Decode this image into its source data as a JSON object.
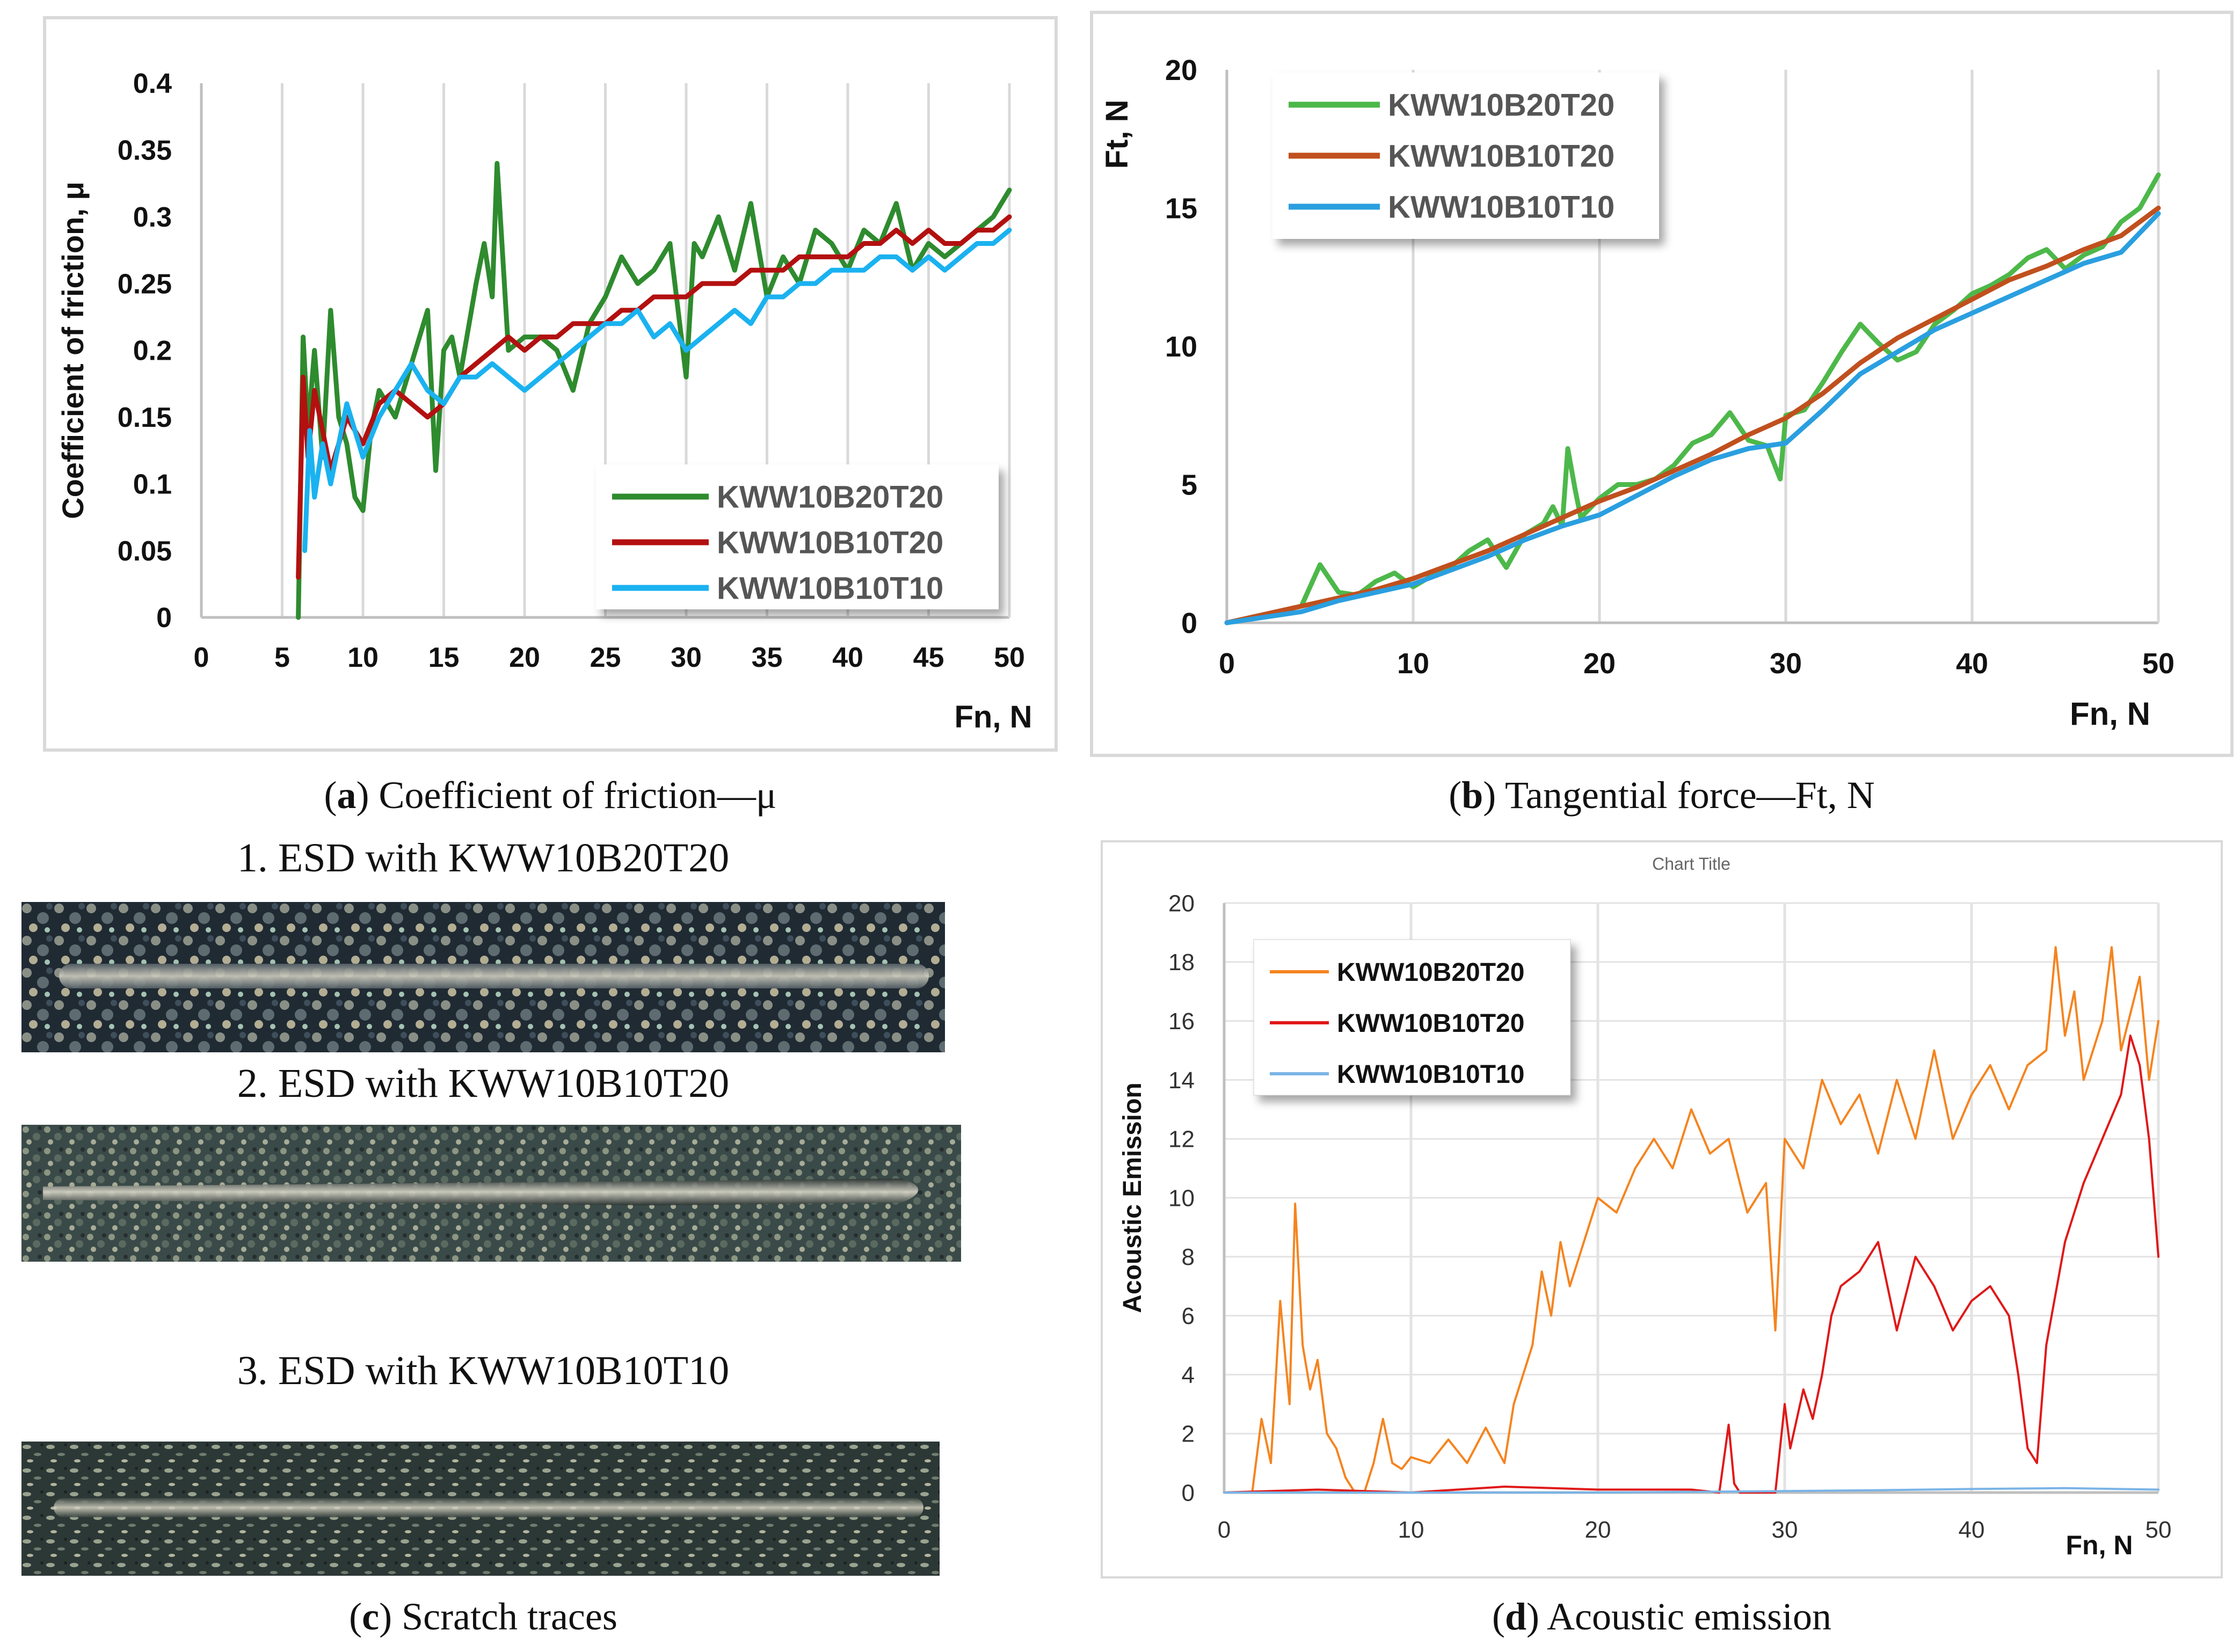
{
  "panels": {
    "a": {
      "caption_letter": "a",
      "caption_text": ") Coefficient of friction—μ",
      "caption_open": "("
    },
    "b": {
      "caption_letter": "b",
      "caption_text": ") Tangential force—Ft, N",
      "caption_open": "("
    },
    "c": {
      "caption_letter": "c",
      "caption_text": ") Scratch traces",
      "caption_open": "("
    },
    "d": {
      "caption_letter": "d",
      "caption_text": ") Acoustic emission",
      "caption_open": "("
    }
  },
  "scratch_traces": [
    {
      "label": "1. ESD with KWW10B20T20"
    },
    {
      "label": "2. ESD with KWW10B10T20"
    },
    {
      "label": "3. ESD with KWW10B10T10"
    }
  ],
  "colors": {
    "a_green": "#2e8b2e",
    "a_red": "#b31010",
    "a_blue": "#1ab2f0",
    "b_green": "#4db84a",
    "b_orange": "#c0501e",
    "b_blue": "#2a9fe0",
    "d_orange": "#f5841f",
    "d_red": "#e01818",
    "d_blue": "#7ab4e6"
  },
  "chart_data": [
    {
      "id": "a",
      "type": "line",
      "title": "",
      "xlabel": "Fn, N",
      "ylabel": "Coefficient of friction, μ",
      "xlim": [
        0,
        50
      ],
      "ylim": [
        0,
        0.4
      ],
      "xticks": [
        "0",
        "5",
        "10",
        "15",
        "20",
        "25",
        "30",
        "35",
        "40",
        "45",
        "50"
      ],
      "yticks": [
        "0",
        "0.05",
        "0.1",
        "0.15",
        "0.2",
        "0.25",
        "0.3",
        "0.35",
        "0.4"
      ],
      "legend_position": "bottom-right",
      "series": [
        {
          "name": "KWW10B20T20",
          "color_key": "a_green",
          "x": [
            6,
            6.3,
            6.6,
            7,
            7.5,
            8,
            8.5,
            9,
            9.5,
            10,
            10.5,
            11,
            12,
            13,
            14,
            14.5,
            15,
            15.5,
            16,
            17,
            17.5,
            18,
            18.3,
            18.6,
            19,
            20,
            21,
            22,
            23,
            24,
            25,
            26,
            27,
            28,
            29,
            30,
            30.5,
            31,
            32,
            33,
            34,
            35,
            36,
            37,
            38,
            39,
            40,
            41,
            42,
            43,
            44,
            45,
            46,
            47,
            48,
            49,
            50
          ],
          "y": [
            0,
            0.21,
            0.14,
            0.2,
            0.12,
            0.23,
            0.15,
            0.13,
            0.09,
            0.08,
            0.14,
            0.17,
            0.15,
            0.19,
            0.23,
            0.11,
            0.2,
            0.21,
            0.18,
            0.25,
            0.28,
            0.24,
            0.34,
            0.28,
            0.2,
            0.21,
            0.21,
            0.2,
            0.17,
            0.22,
            0.24,
            0.27,
            0.25,
            0.26,
            0.28,
            0.18,
            0.28,
            0.27,
            0.3,
            0.26,
            0.31,
            0.24,
            0.27,
            0.25,
            0.29,
            0.28,
            0.26,
            0.29,
            0.28,
            0.31,
            0.26,
            0.28,
            0.27,
            0.28,
            0.29,
            0.3,
            0.32
          ]
        },
        {
          "name": "KWW10B10T20",
          "color_key": "a_red",
          "x": [
            6,
            6.3,
            6.6,
            7,
            8,
            9,
            10,
            11,
            12,
            13,
            14,
            15,
            16,
            17,
            18,
            19,
            20,
            21,
            22,
            23,
            24,
            25,
            26,
            27,
            28,
            29,
            30,
            31,
            32,
            33,
            34,
            35,
            36,
            37,
            38,
            39,
            40,
            41,
            42,
            43,
            44,
            45,
            46,
            47,
            48,
            49,
            50
          ],
          "y": [
            0.03,
            0.18,
            0.12,
            0.17,
            0.11,
            0.15,
            0.13,
            0.16,
            0.17,
            0.16,
            0.15,
            0.16,
            0.18,
            0.19,
            0.2,
            0.21,
            0.2,
            0.21,
            0.21,
            0.22,
            0.22,
            0.22,
            0.23,
            0.23,
            0.24,
            0.24,
            0.24,
            0.25,
            0.25,
            0.25,
            0.26,
            0.26,
            0.26,
            0.27,
            0.27,
            0.27,
            0.27,
            0.28,
            0.28,
            0.29,
            0.28,
            0.29,
            0.28,
            0.28,
            0.29,
            0.29,
            0.3
          ]
        },
        {
          "name": "KWW10B10T10",
          "color_key": "a_blue",
          "x": [
            6.4,
            6.7,
            7,
            7.5,
            8,
            9,
            10,
            11,
            12,
            13,
            14,
            15,
            16,
            17,
            18,
            19,
            20,
            21,
            22,
            23,
            24,
            25,
            26,
            27,
            28,
            29,
            30,
            31,
            32,
            33,
            34,
            35,
            36,
            37,
            38,
            39,
            40,
            41,
            42,
            43,
            44,
            45,
            46,
            47,
            48,
            49,
            50
          ],
          "y": [
            0.05,
            0.14,
            0.09,
            0.13,
            0.1,
            0.16,
            0.12,
            0.15,
            0.17,
            0.19,
            0.17,
            0.16,
            0.18,
            0.18,
            0.19,
            0.18,
            0.17,
            0.18,
            0.19,
            0.2,
            0.21,
            0.22,
            0.22,
            0.23,
            0.21,
            0.22,
            0.2,
            0.21,
            0.22,
            0.23,
            0.22,
            0.24,
            0.24,
            0.25,
            0.25,
            0.26,
            0.26,
            0.26,
            0.27,
            0.27,
            0.26,
            0.27,
            0.26,
            0.27,
            0.28,
            0.28,
            0.29
          ]
        }
      ]
    },
    {
      "id": "b",
      "type": "line",
      "title": "",
      "xlabel": "Fn, N",
      "ylabel": "Ft, N",
      "xlim": [
        0,
        50
      ],
      "ylim": [
        0,
        20
      ],
      "xticks": [
        "0",
        "10",
        "20",
        "30",
        "40",
        "50"
      ],
      "yticks": [
        "0",
        "5",
        "10",
        "15",
        "20"
      ],
      "legend_position": "top-left",
      "series": [
        {
          "name": "KWW10B20T20",
          "color_key": "b_green",
          "x": [
            0,
            2,
            4,
            5,
            6,
            7,
            8,
            9,
            10,
            11,
            12,
            13,
            14,
            15,
            16,
            17,
            17.5,
            18,
            18.3,
            18.7,
            19,
            20,
            21,
            22,
            23,
            24,
            25,
            26,
            27,
            28,
            29,
            29.7,
            30,
            31,
            32,
            33,
            34,
            35,
            36,
            37,
            38,
            39,
            40,
            41,
            42,
            43,
            44,
            45,
            46,
            47,
            48,
            49,
            50
          ],
          "y": [
            0,
            0.3,
            0.6,
            2.1,
            1.1,
            1.0,
            1.5,
            1.8,
            1.3,
            1.7,
            2.0,
            2.6,
            3.0,
            2.0,
            3.2,
            3.6,
            4.2,
            3.5,
            6.3,
            4.8,
            3.8,
            4.5,
            5.0,
            5.0,
            5.2,
            5.7,
            6.5,
            6.8,
            7.6,
            6.6,
            6.4,
            5.2,
            7.5,
            7.7,
            8.7,
            9.8,
            10.8,
            10.1,
            9.5,
            9.8,
            10.8,
            11.3,
            11.9,
            12.2,
            12.6,
            13.2,
            13.5,
            12.8,
            13.3,
            13.6,
            14.5,
            15.0,
            16.2
          ]
        },
        {
          "name": "KWW10B10T20",
          "color_key": "b_orange",
          "x": [
            0,
            2,
            4,
            6,
            8,
            10,
            12,
            14,
            16,
            18,
            20,
            22,
            24,
            26,
            28,
            30,
            32,
            34,
            36,
            38,
            40,
            42,
            44,
            46,
            48,
            50
          ],
          "y": [
            0,
            0.3,
            0.6,
            0.9,
            1.2,
            1.6,
            2.1,
            2.6,
            3.2,
            3.8,
            4.4,
            4.9,
            5.5,
            6.1,
            6.8,
            7.4,
            8.3,
            9.4,
            10.3,
            11.0,
            11.7,
            12.4,
            12.9,
            13.5,
            14.0,
            15.0
          ]
        },
        {
          "name": "KWW10B10T10",
          "color_key": "b_blue",
          "x": [
            0,
            2,
            4,
            6,
            8,
            10,
            12,
            14,
            16,
            18,
            20,
            22,
            24,
            26,
            28,
            30,
            32,
            34,
            36,
            38,
            40,
            42,
            44,
            46,
            48,
            50
          ],
          "y": [
            0,
            0.2,
            0.4,
            0.8,
            1.1,
            1.4,
            1.9,
            2.4,
            3.0,
            3.5,
            3.9,
            4.6,
            5.3,
            5.9,
            6.3,
            6.5,
            7.7,
            9.0,
            9.8,
            10.6,
            11.2,
            11.8,
            12.4,
            13.0,
            13.4,
            14.8
          ]
        }
      ]
    },
    {
      "id": "d",
      "type": "line",
      "title": "Chart Title",
      "xlabel": "Fn, N",
      "ylabel": "Acoustic Emission",
      "xlim": [
        0,
        50
      ],
      "ylim": [
        0,
        20
      ],
      "xticks": [
        "0",
        "10",
        "20",
        "30",
        "40",
        "50"
      ],
      "yticks": [
        "0",
        "2",
        "4",
        "6",
        "8",
        "10",
        "12",
        "14",
        "16",
        "18",
        "20"
      ],
      "legend_position": "top-left",
      "series": [
        {
          "name": "KWW10B20T20",
          "color_key": "d_orange",
          "x": [
            0,
            1.5,
            2,
            2.5,
            3,
            3.5,
            3.8,
            4.2,
            4.6,
            5,
            5.5,
            6,
            6.5,
            7,
            7.5,
            8,
            8.5,
            9,
            9.5,
            10,
            11,
            12,
            13,
            14,
            15,
            15.5,
            16,
            16.5,
            17,
            17.5,
            18,
            18.5,
            19,
            20,
            21,
            22,
            23,
            24,
            25,
            26,
            27,
            28,
            29,
            29.5,
            30,
            31,
            32,
            33,
            34,
            35,
            36,
            37,
            38,
            39,
            40,
            41,
            42,
            43,
            44,
            44.5,
            45,
            45.5,
            46,
            47,
            47.5,
            48,
            49,
            49.5,
            50
          ],
          "y": [
            0,
            0,
            2.5,
            1,
            6.5,
            3,
            9.8,
            5,
            3.5,
            4.5,
            2,
            1.5,
            0.5,
            0,
            0,
            1,
            2.5,
            1,
            0.8,
            1.2,
            1,
            1.8,
            1,
            2.2,
            1,
            3,
            4,
            5,
            7.5,
            6,
            8.5,
            7,
            8,
            10,
            9.5,
            11,
            12,
            11,
            13,
            11.5,
            12,
            9.5,
            10.5,
            5.5,
            12,
            11,
            14,
            12.5,
            13.5,
            11.5,
            14,
            12,
            15,
            12,
            13.5,
            14.5,
            13,
            14.5,
            15,
            18.5,
            15.5,
            17,
            14,
            16,
            18.5,
            15,
            17.5,
            14,
            16
          ]
        },
        {
          "name": "KWW10B10T20",
          "color_key": "d_red",
          "x": [
            0,
            5,
            10,
            15,
            20,
            25,
            26.5,
            27,
            27.3,
            27.6,
            28,
            29.5,
            30,
            30.3,
            31,
            31.5,
            32,
            32.5,
            33,
            34,
            35,
            36,
            37,
            38,
            39,
            40,
            41,
            42,
            42.5,
            43,
            43.5,
            44,
            45,
            46,
            47,
            48,
            48.5,
            49,
            49.5,
            50
          ],
          "y": [
            0,
            0.1,
            0,
            0.2,
            0.1,
            0.1,
            0,
            2.3,
            0.3,
            0,
            0,
            0,
            3,
            1.5,
            3.5,
            2.5,
            4,
            6,
            7,
            7.5,
            8.5,
            5.5,
            8,
            7,
            5.5,
            6.5,
            7,
            6,
            4,
            1.5,
            1,
            5,
            8.5,
            10.5,
            12,
            13.5,
            15.5,
            14.5,
            12,
            8
          ]
        },
        {
          "name": "KWW10B10T10",
          "color_key": "d_blue",
          "x": [
            0,
            10,
            20,
            30,
            35,
            40,
            45,
            50
          ],
          "y": [
            0,
            0,
            0,
            0.05,
            0.08,
            0.12,
            0.15,
            0.1
          ]
        }
      ]
    }
  ]
}
